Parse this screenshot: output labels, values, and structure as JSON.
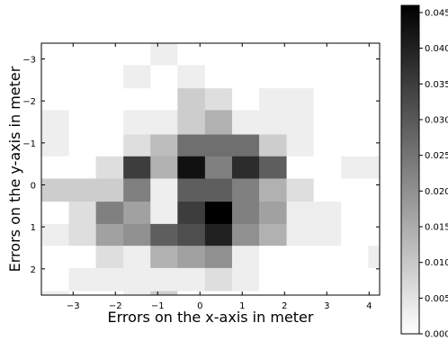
{
  "chart_data": {
    "type": "heatmap",
    "title": "",
    "xlabel": "Errors on the x-axis in meter",
    "ylabel": "Errors on the y-axis in meter",
    "xlim": [
      -3.75,
      4.25
    ],
    "ylim": [
      2.625,
      -3.375
    ],
    "y_inverted": true,
    "x_ticks": [
      -3,
      -2,
      -1,
      0,
      1,
      2,
      3,
      4
    ],
    "x_tick_labels": [
      "−3",
      "−2",
      "−1",
      "0",
      "1",
      "2",
      "3",
      "4"
    ],
    "y_ticks": [
      -3,
      -2,
      -1,
      0,
      1,
      2
    ],
    "y_tick_labels": [
      "−3",
      "−2",
      "−1",
      "0",
      "1",
      "2"
    ],
    "x_edges": [
      -3.75,
      -3.1,
      -2.46,
      -1.81,
      -1.17,
      -0.53,
      0.12,
      0.76,
      1.4,
      2.05,
      2.69,
      3.34,
      3.98,
      4.25
    ],
    "y_edges": [
      -3.375,
      -2.85,
      -2.3,
      -1.78,
      -1.2,
      -0.68,
      -0.15,
      0.4,
      0.93,
      1.45,
      1.98,
      2.53,
      2.625
    ],
    "values": [
      [
        0,
        0,
        0,
        0,
        0.003,
        0,
        0,
        0,
        0,
        0,
        0,
        0,
        0
      ],
      [
        0,
        0,
        0,
        0.003,
        0,
        0.003,
        0,
        0,
        0,
        0,
        0,
        0,
        0
      ],
      [
        0,
        0,
        0,
        0,
        0,
        0.009,
        0.006,
        0,
        0.003,
        0.003,
        0,
        0,
        0
      ],
      [
        0.003,
        0,
        0,
        0.003,
        0.003,
        0.009,
        0.014,
        0.003,
        0.003,
        0.003,
        0,
        0,
        0
      ],
      [
        0.003,
        0,
        0,
        0.006,
        0.012,
        0.026,
        0.026,
        0.026,
        0.009,
        0.003,
        0,
        0,
        0
      ],
      [
        0,
        0,
        0.006,
        0.035,
        0.014,
        0.043,
        0.023,
        0.038,
        0.029,
        0,
        0,
        0.003,
        0.003
      ],
      [
        0.009,
        0.009,
        0.009,
        0.023,
        0.003,
        0.029,
        0.029,
        0.023,
        0.014,
        0.006,
        0,
        0,
        0
      ],
      [
        0,
        0.006,
        0.023,
        0.017,
        0.003,
        0.035,
        0.046,
        0.023,
        0.017,
        0.003,
        0.003,
        0,
        0
      ],
      [
        0.003,
        0.006,
        0.017,
        0.02,
        0.029,
        0.032,
        0.04,
        0.02,
        0.014,
        0.003,
        0.003,
        0,
        0
      ],
      [
        0,
        0,
        0.006,
        0.003,
        0.014,
        0.017,
        0.02,
        0.003,
        0,
        0,
        0,
        0,
        0.003
      ],
      [
        0,
        0.003,
        0.003,
        0.003,
        0.003,
        0.003,
        0.006,
        0.003,
        0,
        0,
        0,
        0,
        0
      ],
      [
        0.003,
        0,
        0,
        0.003,
        0.009,
        0,
        0,
        0,
        0,
        0,
        0,
        0,
        0
      ]
    ],
    "colorbar": {
      "colormap": "white-to-black",
      "range": [
        0,
        0.046
      ],
      "ticks": [
        0,
        0.005,
        0.01,
        0.015,
        0.02,
        0.025,
        0.03,
        0.035,
        0.04,
        0.045
      ],
      "tick_labels": [
        "0.000",
        "0.005",
        "0.010",
        "0.015",
        "0.020",
        "0.025",
        "0.030",
        "0.035",
        "0.040",
        "0.045"
      ]
    },
    "grid": false
  }
}
